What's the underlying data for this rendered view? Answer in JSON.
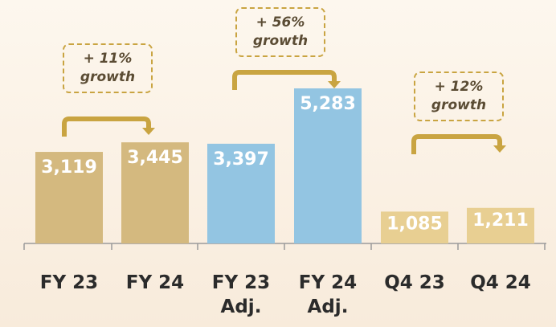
{
  "chart_data": {
    "type": "bar",
    "categories": [
      "FY 23",
      "FY 24",
      "FY 23 Adj.",
      "FY 24 Adj.",
      "Q4 23",
      "Q4 24"
    ],
    "values": [
      3119,
      3445,
      3397,
      5283,
      1085,
      1211
    ],
    "value_labels": [
      "3,119",
      "3,445",
      "3,397",
      "5,283",
      "1,085",
      "1,211"
    ],
    "colors": [
      "#d4b97f",
      "#d4b97f",
      "#93c5e2",
      "#93c5e2",
      "#e8cf92",
      "#e8cf92"
    ],
    "annotations": [
      "+ 11% growth",
      "+ 56% growth",
      "+ 12% growth"
    ]
  }
}
